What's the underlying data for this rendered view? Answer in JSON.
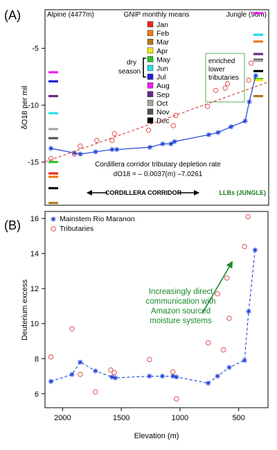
{
  "panels": {
    "a_label": "(A)",
    "b_label": "(B)"
  },
  "colors": {
    "mainstem": "#1e3fd8",
    "tributary": "#e05050",
    "fit": "#e05050",
    "annotation_green": "#1a8a2a",
    "box_green": "#5aaa5a"
  },
  "chart_data": [
    {
      "type": "line",
      "panel": "A",
      "ylabel": "δO18 per mil",
      "ylim": [
        -18.8,
        -1.6
      ],
      "yticks": [
        "-5",
        "-10",
        "-15"
      ],
      "xlim": [
        2150,
        250
      ],
      "top_left_label": "Alpine (4477m)",
      "top_right_label": "Jungle (98m)",
      "legend_title": "GNIP monthly means",
      "legend_months": [
        {
          "label": "Jan",
          "color": "#e8291c"
        },
        {
          "label": "Feb",
          "color": "#f07a1a"
        },
        {
          "label": "Mar",
          "color": "#b07a1e"
        },
        {
          "label": "Apr",
          "color": "#f4e81a"
        },
        {
          "label": "May",
          "color": "#2ac52a"
        },
        {
          "label": "Jun",
          "color": "#25e0e8"
        },
        {
          "label": "Jul",
          "color": "#1f1fd6"
        },
        {
          "label": "Aug",
          "color": "#f01ef0"
        },
        {
          "label": "Sep",
          "color": "#6a2a8a"
        },
        {
          "label": "Oct",
          "color": "#a6a6a6"
        },
        {
          "label": "Nov",
          "color": "#555555"
        },
        {
          "label": "Dec",
          "color": "#000000"
        }
      ],
      "dry_season_label": [
        "dry",
        "season"
      ],
      "alpine_gnip": [
        {
          "color": "#f01ef0",
          "y": -7.1
        },
        {
          "color": "#1f1fd6",
          "y": -7.9
        },
        {
          "color": "#6a2a8a",
          "y": -9.2
        },
        {
          "color": "#25e0e8",
          "y": -10.7
        },
        {
          "color": "#a6a6a6",
          "y": -12.1
        },
        {
          "color": "#555555",
          "y": -12.9
        },
        {
          "color": "#2ac52a",
          "y": -15.0
        },
        {
          "color": "#e8291c",
          "y": -16.0
        },
        {
          "color": "#f07a1a",
          "y": -16.3
        },
        {
          "color": "#000000",
          "y": -17.3
        },
        {
          "color": "#b07a1e",
          "y": -18.6
        }
      ],
      "jungle_gnip": [
        {
          "color": "#f01ef0",
          "y": -1.9
        },
        {
          "color": "#1f1fd6",
          "y": -3.8
        },
        {
          "color": "#25e0e8",
          "y": -3.8
        },
        {
          "color": "#f07a1a",
          "y": -4.4
        },
        {
          "color": "#6a2a8a",
          "y": -5.5
        },
        {
          "color": "#555555",
          "y": -6.0
        },
        {
          "color": "#a6a6a6",
          "y": -6.1
        },
        {
          "color": "#000000",
          "y": -7.0
        },
        {
          "color": "#2ac52a",
          "y": -7.7
        },
        {
          "color": "#f4e81a",
          "y": -7.8
        },
        {
          "color": "#b07a1e",
          "y": -9.2
        }
      ],
      "series": [
        {
          "name": "Mainstem Rio Maranon",
          "x": [
            2100,
            1900,
            1850,
            1720,
            1580,
            1540,
            1260,
            1150,
            1080,
            1050,
            760,
            680,
            570,
            450,
            415,
            360
          ],
          "y": [
            -13.8,
            -14.2,
            -14.3,
            -14.1,
            -13.9,
            -13.9,
            -13.7,
            -13.4,
            -13.4,
            -13.2,
            -12.6,
            -12.4,
            -11.9,
            -11.4,
            -9.7,
            -7.4
          ]
        },
        {
          "name": "Tributaries",
          "x": [
            2100,
            1900,
            1850,
            1710,
            1580,
            1560,
            1270,
            1060,
            1040,
            770,
            700,
            620,
            600,
            420,
            400
          ],
          "y": [
            -14.7,
            -14.3,
            -13.6,
            -13.1,
            -13.1,
            -12.5,
            -12.2,
            -11.8,
            -10.9,
            -10.1,
            -8.7,
            -8.5,
            -8.1,
            -7.8,
            -6.3
          ]
        }
      ],
      "regression_label": "Cordillera corridor tributary depletion rate",
      "regression_equation": "dO18 = – 0.0037(m) –7.0261",
      "enriched_label": [
        "enriched",
        "lower",
        "tributaries"
      ],
      "corridor_label": "CORDILLERA CORRIDOR",
      "llb_label": "LLBs (JUNGLE)"
    },
    {
      "type": "line",
      "panel": "B",
      "ylabel": "Deuterium excess",
      "xlabel": "Elevation (m)",
      "ylim": [
        5.2,
        16.4
      ],
      "xlim": [
        2150,
        250
      ],
      "yticks": [
        "6",
        "8",
        "10",
        "12",
        "14",
        "16"
      ],
      "xticks": [
        "2000",
        "1500",
        "1000",
        "500"
      ],
      "legend": [
        "Mainstem Rio Maranon",
        "Tributaries"
      ],
      "series": [
        {
          "name": "Mainstem Rio Maranon",
          "x": [
            2100,
            1920,
            1850,
            1720,
            1580,
            1550,
            1260,
            1150,
            1060,
            1030,
            760,
            680,
            580,
            450,
            415,
            360
          ],
          "y": [
            6.7,
            7.1,
            7.8,
            7.3,
            6.95,
            6.9,
            7.0,
            7.0,
            7.0,
            6.95,
            6.6,
            7.0,
            7.5,
            7.9,
            10.7,
            14.2
          ]
        },
        {
          "name": "Tributaries",
          "x": [
            2100,
            1920,
            1850,
            1720,
            1590,
            1560,
            1260,
            1060,
            1030,
            760,
            680,
            630,
            600,
            580,
            450,
            420
          ],
          "y": [
            8.1,
            9.7,
            7.1,
            6.1,
            7.35,
            7.2,
            7.95,
            7.25,
            5.7,
            8.9,
            11.7,
            8.5,
            12.6,
            10.3,
            14.4,
            16.1
          ]
        }
      ],
      "annotation": [
        "Increasingly direct",
        "communication with",
        "Amazon sourced",
        "moisture systems"
      ]
    }
  ]
}
